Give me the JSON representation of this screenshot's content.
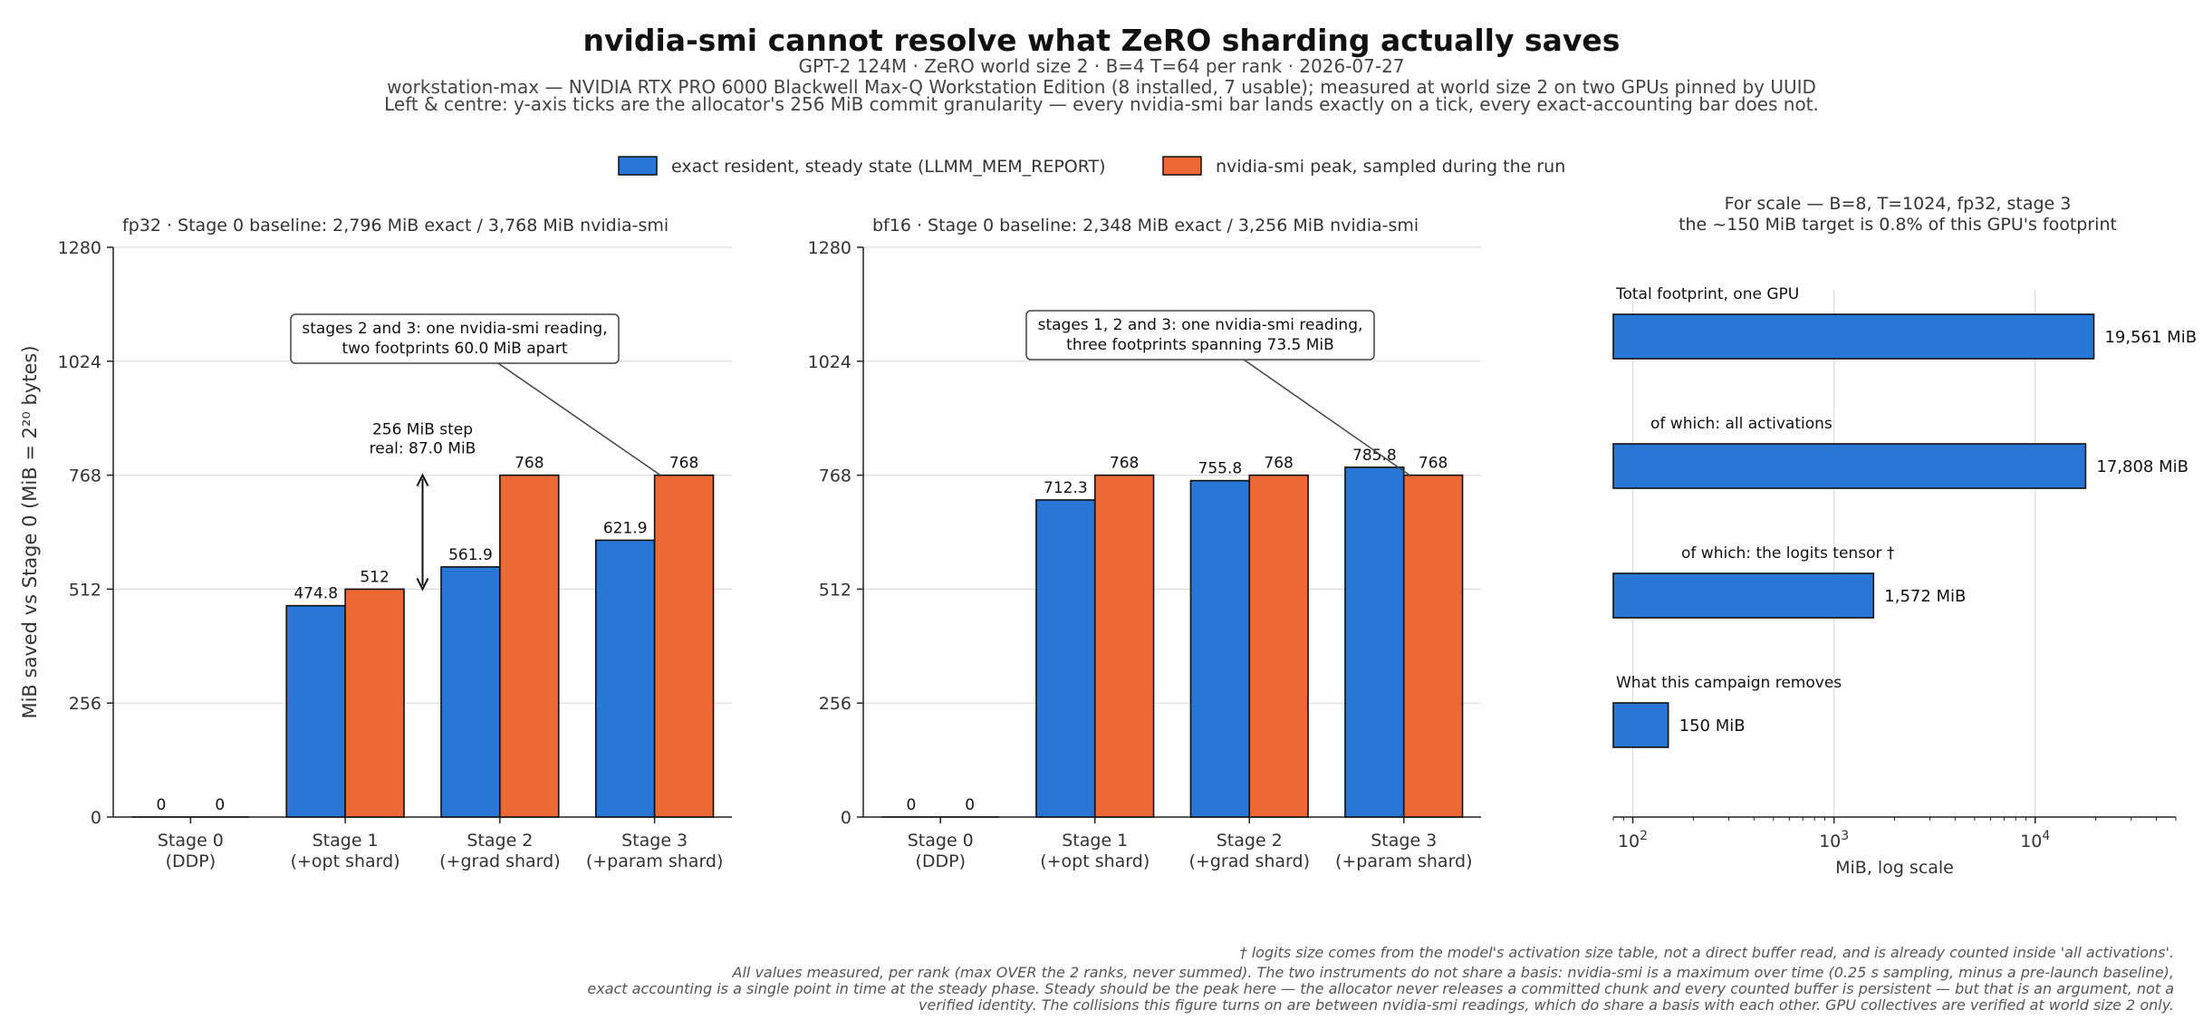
{
  "title": "nvidia-smi cannot resolve what ZeRO sharding actually saves",
  "subtitle_lines": [
    "GPT-2 124M · ZeRO world size 2 · B=4 T=64 per rank · 2026-07-27",
    "workstation-max — NVIDIA RTX PRO 6000 Blackwell Max-Q Workstation Edition (8 installed, 7 usable); measured at world size 2 on two GPUs pinned by UUID",
    "Left & centre: y-axis ticks are the allocator's 256 MiB commit granularity — every nvidia-smi bar lands exactly on a tick, every exact-accounting bar does not."
  ],
  "legend": [
    {
      "label": "exact resident, steady state (LLMM_MEM_REPORT)",
      "color": "#2876d6"
    },
    {
      "label": "nvidia-smi peak, sampled during the run",
      "color": "#ec6834"
    }
  ],
  "colors": {
    "exact": "#2876d6",
    "smi": "#ec6834"
  },
  "footnotes": [
    "† logits size comes from the model's activation size table, not a direct buffer read, and is already counted inside 'all activations'.",
    "All values measured, per rank (max OVER the 2 ranks, never summed). The two instruments do not share a basis: nvidia-smi is a maximum over time (0.25 s sampling, minus a pre-launch baseline),",
    "exact accounting is a single point in time at the steady phase. Steady should be the peak here — the allocator never releases a committed chunk and every counted buffer is persistent — but that is an argument, not a",
    "verified identity. The collisions this figure turns on are between nvidia-smi readings, which do share a basis with each other. GPU collectives are verified at world size 2 only."
  ],
  "chart_data": [
    {
      "type": "bar",
      "title": "fp32   ·   Stage 0 baseline: 2,796 MiB exact / 3,768 MiB nvidia-smi",
      "ylabel": "MiB saved vs Stage 0  (MiB = 2²⁰ bytes)",
      "ylim": [
        0,
        1280
      ],
      "yticks": [
        0,
        256,
        512,
        768,
        1024,
        1280
      ],
      "categories": [
        [
          "Stage 0",
          "(DDP)"
        ],
        [
          "Stage 1",
          "(+opt shard)"
        ],
        [
          "Stage 2",
          "(+grad shard)"
        ],
        [
          "Stage 3",
          "(+param shard)"
        ]
      ],
      "series": [
        {
          "key": "exact",
          "values": [
            0,
            474.8,
            561.9,
            621.9
          ],
          "labels": [
            "0",
            "474.8",
            "561.9",
            "621.9"
          ]
        },
        {
          "key": "smi",
          "values": [
            0,
            512,
            768,
            768
          ],
          "labels": [
            "0",
            "512",
            "768",
            "768"
          ]
        }
      ],
      "annotation": {
        "lines": [
          "stages 2 and 3: one nvidia-smi reading,",
          "two footprints 60.0 MiB apart"
        ],
        "target_category": 3,
        "target_value": 768
      },
      "step_annotation": {
        "lines": [
          "256 MiB step",
          "real: 87.0 MiB"
        ],
        "from": 512,
        "to": 768,
        "between_categories": [
          1,
          2
        ]
      }
    },
    {
      "type": "bar",
      "title": "bf16   ·   Stage 0 baseline: 2,348 MiB exact / 3,256 MiB nvidia-smi",
      "ylim": [
        0,
        1280
      ],
      "yticks": [
        0,
        256,
        512,
        768,
        1024,
        1280
      ],
      "categories": [
        [
          "Stage 0",
          "(DDP)"
        ],
        [
          "Stage 1",
          "(+opt shard)"
        ],
        [
          "Stage 2",
          "(+grad shard)"
        ],
        [
          "Stage 3",
          "(+param shard)"
        ]
      ],
      "series": [
        {
          "key": "exact",
          "values": [
            0,
            712.3,
            755.8,
            785.8
          ],
          "labels": [
            "0",
            "712.3",
            "755.8",
            "785.8"
          ]
        },
        {
          "key": "smi",
          "values": [
            0,
            768,
            768,
            768
          ],
          "labels": [
            "0",
            "768",
            "768",
            "768"
          ]
        }
      ],
      "annotation": {
        "lines": [
          "stages 1, 2 and 3: one nvidia-smi reading,",
          "three footprints spanning 73.5 MiB"
        ],
        "target_category": 3,
        "target_value": 768
      }
    },
    {
      "type": "bar",
      "orientation": "horizontal",
      "title_lines": [
        "For scale — B=8, T=1024, fp32, stage 3",
        "the ~150 MiB target is 0.8% of this GPU's footprint"
      ],
      "xlabel": "MiB, log scale",
      "xscale": "log",
      "xlim": [
        80,
        50000
      ],
      "xticks": [
        {
          "value": 100,
          "base": "10",
          "exp": "2"
        },
        {
          "value": 1000,
          "base": "10",
          "exp": "3"
        },
        {
          "value": 10000,
          "base": "10",
          "exp": "4"
        }
      ],
      "rows": [
        {
          "label": "Total footprint, one GPU",
          "value": 19561,
          "value_label": "19,561 MiB"
        },
        {
          "label": "of which: all activations",
          "value": 17808,
          "value_label": "17,808 MiB"
        },
        {
          "label": "of which: the logits tensor †",
          "value": 1572,
          "value_label": "1,572 MiB"
        },
        {
          "label": "What this campaign removes",
          "value": 150,
          "value_label": "150 MiB"
        }
      ]
    }
  ]
}
